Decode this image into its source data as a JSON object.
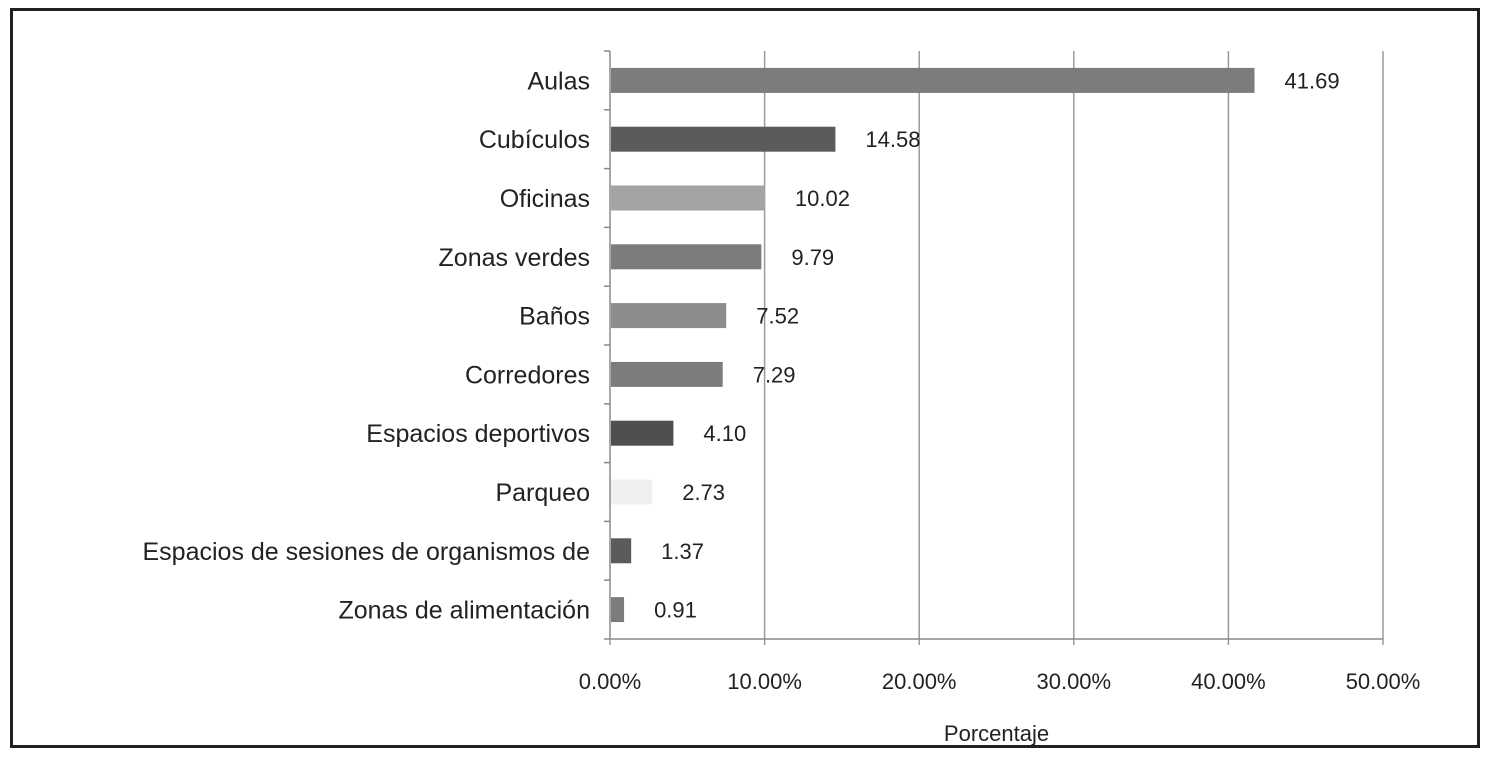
{
  "chart_data": {
    "type": "bar",
    "orientation": "horizontal",
    "title": "",
    "xlabel": "Porcentaje",
    "ylabel": "",
    "categories": [
      "Aulas",
      "Cubículos",
      "Oficinas",
      "Zonas verdes",
      "Baños",
      "Corredores",
      "Espacios deportivos",
      "Parqueo",
      "Espacios de sesiones de organismos de",
      "Zonas de alimentación"
    ],
    "values": [
      41.69,
      14.58,
      10.02,
      9.79,
      7.52,
      7.29,
      4.1,
      2.73,
      1.37,
      0.91
    ],
    "value_labels": [
      "41.69",
      "14.58",
      "10.02",
      "9.79",
      "7.52",
      "7.29",
      "4.10",
      "2.73",
      "1.37",
      "0.91"
    ],
    "bar_colors": [
      "#7c7c7c",
      "#5b5b5b",
      "#a3a3a3",
      "#7c7c7c",
      "#8c8c8c",
      "#7c7c7c",
      "#4f4f4f",
      "#efefef",
      "#5b5b5b",
      "#7c7c7c"
    ],
    "xlim": [
      0,
      50
    ],
    "xticks": [
      0,
      10,
      20,
      30,
      40,
      50
    ],
    "xtick_labels": [
      "0.00%",
      "10.00%",
      "20.00%",
      "30.00%",
      "40.00%",
      "50.00%"
    ],
    "grid": "vertical",
    "legend": "none"
  }
}
